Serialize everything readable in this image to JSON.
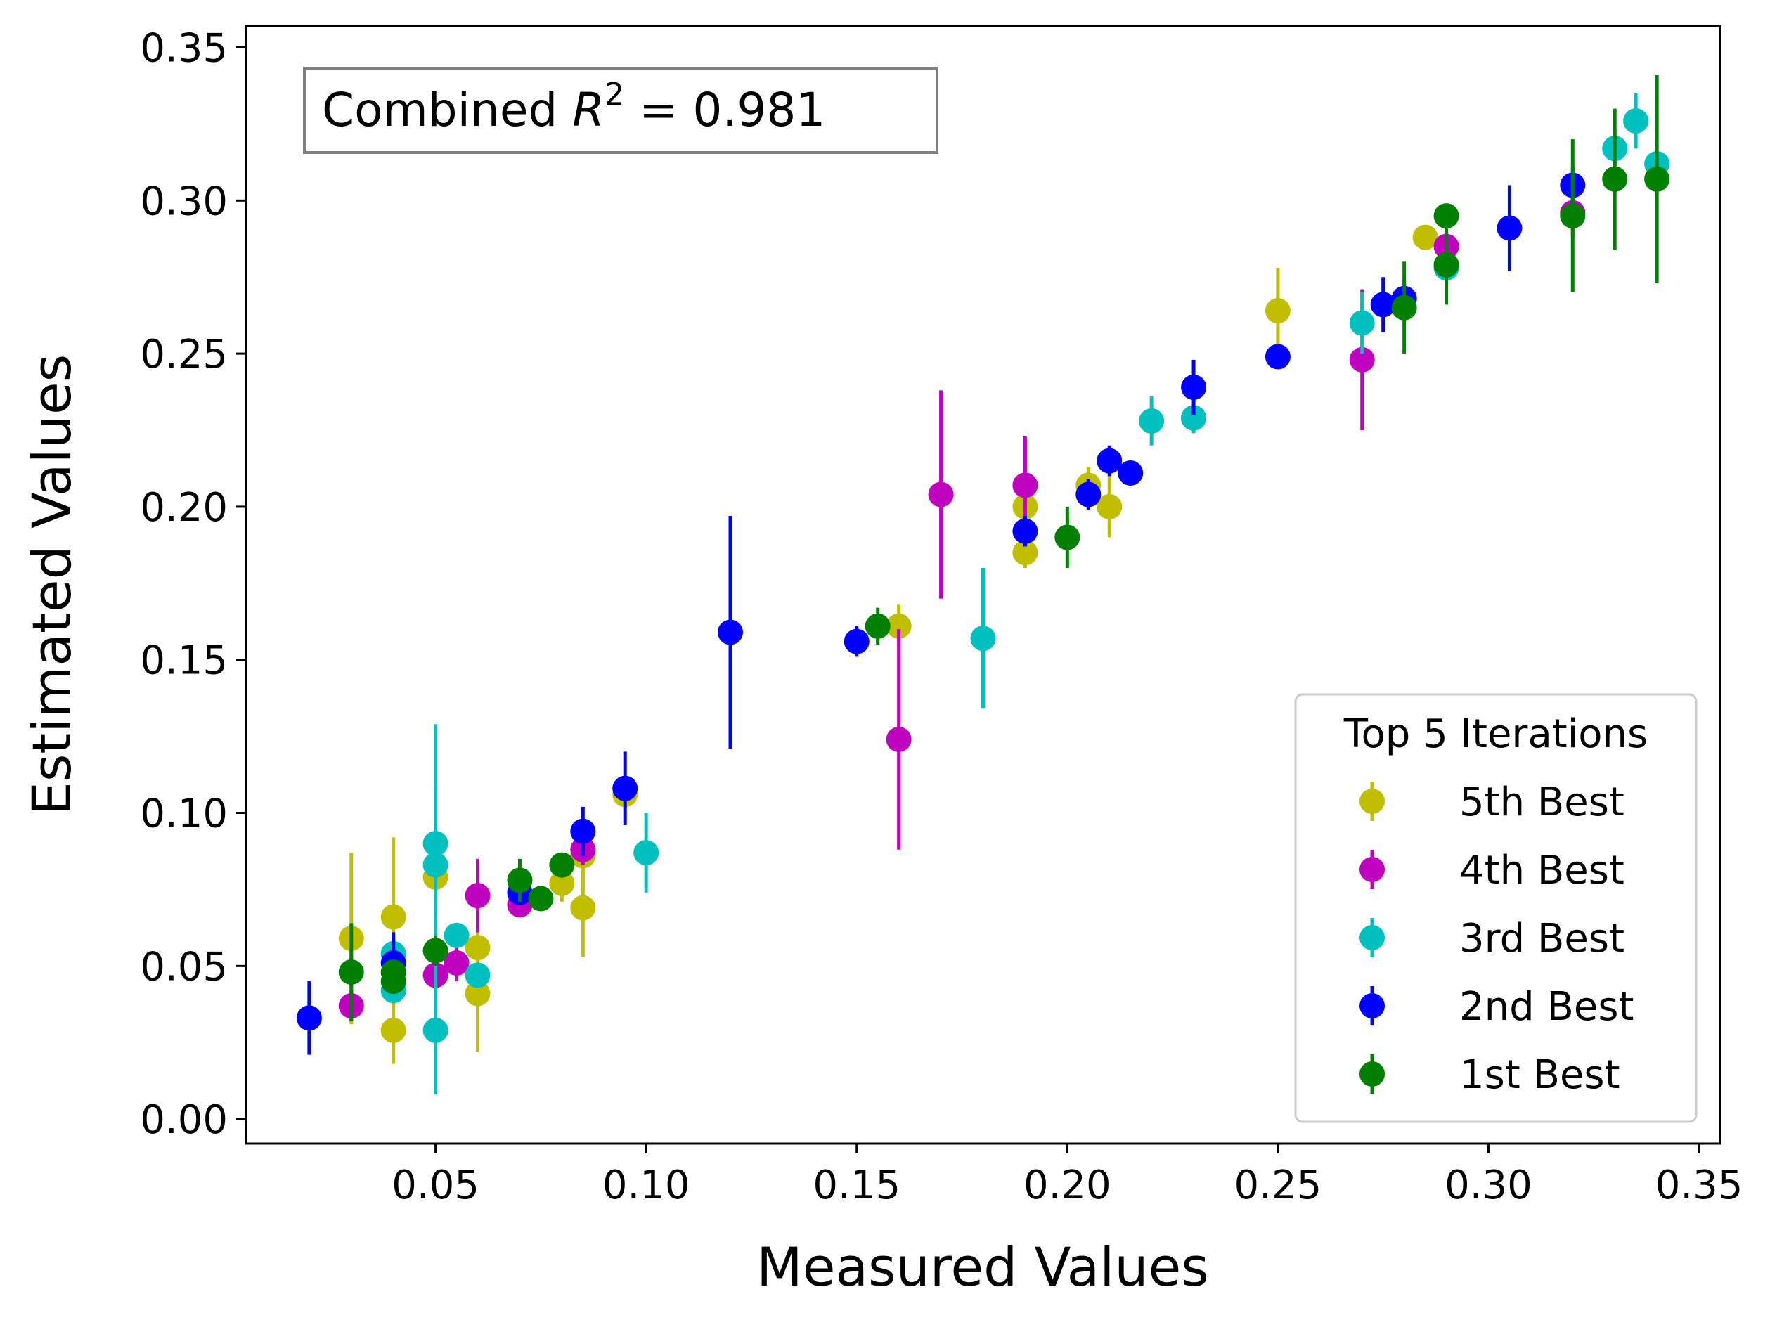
{
  "chart_data": {
    "type": "scatter",
    "xlabel": "Measured Values",
    "ylabel": "Estimated Values",
    "xlim": [
      0.005,
      0.355
    ],
    "ylim": [
      -0.008,
      0.357
    ],
    "xticks": [
      0.05,
      0.1,
      0.15,
      0.2,
      0.25,
      0.3,
      0.35
    ],
    "yticks": [
      0.0,
      0.05,
      0.1,
      0.15,
      0.2,
      0.25,
      0.3,
      0.35
    ],
    "xtick_labels": [
      "0.05",
      "0.10",
      "0.15",
      "0.20",
      "0.25",
      "0.30",
      "0.35"
    ],
    "ytick_labels": [
      "0.00",
      "0.05",
      "0.10",
      "0.15",
      "0.20",
      "0.25",
      "0.30",
      "0.35"
    ],
    "grid": false,
    "annotation": {
      "prefix": "Combined ",
      "symbol": "R",
      "superscript": "2",
      "suffix": " = 0.981"
    },
    "legend": {
      "title": "Top 5 Iterations",
      "placement": "lower-right"
    },
    "series": [
      {
        "name": "5th Best",
        "color": "#bfbf00",
        "points": [
          [
            0.03,
            0.059,
            0.028
          ],
          [
            0.04,
            0.066,
            0.026
          ],
          [
            0.04,
            0.029,
            0.011
          ],
          [
            0.05,
            0.079,
            0.012
          ],
          [
            0.06,
            0.056,
            0.018
          ],
          [
            0.06,
            0.041,
            0.019
          ],
          [
            0.08,
            0.077,
            0.006
          ],
          [
            0.085,
            0.086,
            0.012
          ],
          [
            0.085,
            0.069,
            0.016
          ],
          [
            0.095,
            0.106,
            0.004
          ],
          [
            0.16,
            0.161,
            0.007
          ],
          [
            0.19,
            0.2,
            0.009
          ],
          [
            0.19,
            0.185,
            0.005
          ],
          [
            0.205,
            0.207,
            0.006
          ],
          [
            0.21,
            0.2,
            0.01
          ],
          [
            0.25,
            0.264,
            0.014
          ],
          [
            0.285,
            0.288,
            0.004
          ]
        ]
      },
      {
        "name": "4th Best",
        "color": "#bf00bf",
        "points": [
          [
            0.03,
            0.037,
            0.005
          ],
          [
            0.05,
            0.047,
            0.008
          ],
          [
            0.055,
            0.051,
            0.006
          ],
          [
            0.06,
            0.073,
            0.012
          ],
          [
            0.07,
            0.07,
            0.004
          ],
          [
            0.085,
            0.088,
            0.005
          ],
          [
            0.16,
            0.124,
            0.036
          ],
          [
            0.17,
            0.204,
            0.034
          ],
          [
            0.19,
            0.207,
            0.016
          ],
          [
            0.23,
            0.229,
            0.004
          ],
          [
            0.27,
            0.248,
            0.023
          ],
          [
            0.29,
            0.285,
            0.01
          ],
          [
            0.32,
            0.296,
            0.008
          ]
        ]
      },
      {
        "name": "3rd Best",
        "color": "#00bfbf",
        "points": [
          [
            0.04,
            0.054,
            0.005
          ],
          [
            0.04,
            0.042,
            0.004
          ],
          [
            0.05,
            0.09,
            0.017
          ],
          [
            0.05,
            0.083,
            0.046
          ],
          [
            0.05,
            0.029,
            0.021
          ],
          [
            0.055,
            0.06,
            0.004
          ],
          [
            0.06,
            0.047,
            0.004
          ],
          [
            0.1,
            0.087,
            0.013
          ],
          [
            0.18,
            0.157,
            0.023
          ],
          [
            0.22,
            0.228,
            0.008
          ],
          [
            0.23,
            0.229,
            0.005
          ],
          [
            0.27,
            0.26,
            0.01
          ],
          [
            0.29,
            0.278,
            0.012
          ],
          [
            0.33,
            0.317,
            0.006
          ],
          [
            0.335,
            0.326,
            0.009
          ],
          [
            0.34,
            0.312,
            0.006
          ]
        ]
      },
      {
        "name": "2nd Best",
        "color": "#0000ff",
        "points": [
          [
            0.02,
            0.033,
            0.012
          ],
          [
            0.04,
            0.051,
            0.01
          ],
          [
            0.07,
            0.074,
            0.004
          ],
          [
            0.085,
            0.094,
            0.008
          ],
          [
            0.095,
            0.108,
            0.012
          ],
          [
            0.12,
            0.159,
            0.038
          ],
          [
            0.15,
            0.156,
            0.005
          ],
          [
            0.19,
            0.192,
            0.005
          ],
          [
            0.205,
            0.204,
            0.005
          ],
          [
            0.21,
            0.215,
            0.005
          ],
          [
            0.215,
            0.211,
            0.004
          ],
          [
            0.23,
            0.239,
            0.009
          ],
          [
            0.25,
            0.249,
            0.004
          ],
          [
            0.275,
            0.266,
            0.009
          ],
          [
            0.28,
            0.268,
            0.006
          ],
          [
            0.305,
            0.291,
            0.014
          ],
          [
            0.32,
            0.305,
            0.006
          ]
        ]
      },
      {
        "name": "1st Best",
        "color": "#008000",
        "points": [
          [
            0.03,
            0.048,
            0.016
          ],
          [
            0.04,
            0.048,
            0.004
          ],
          [
            0.04,
            0.045,
            0.004
          ],
          [
            0.05,
            0.055,
            0.005
          ],
          [
            0.07,
            0.078,
            0.007
          ],
          [
            0.075,
            0.072,
            0.004
          ],
          [
            0.08,
            0.083,
            0.004
          ],
          [
            0.155,
            0.161,
            0.006
          ],
          [
            0.2,
            0.19,
            0.01
          ],
          [
            0.28,
            0.265,
            0.015
          ],
          [
            0.29,
            0.295,
            0.004
          ],
          [
            0.29,
            0.279,
            0.013
          ],
          [
            0.32,
            0.295,
            0.025
          ],
          [
            0.33,
            0.307,
            0.023
          ],
          [
            0.34,
            0.307,
            0.034
          ]
        ]
      }
    ]
  }
}
